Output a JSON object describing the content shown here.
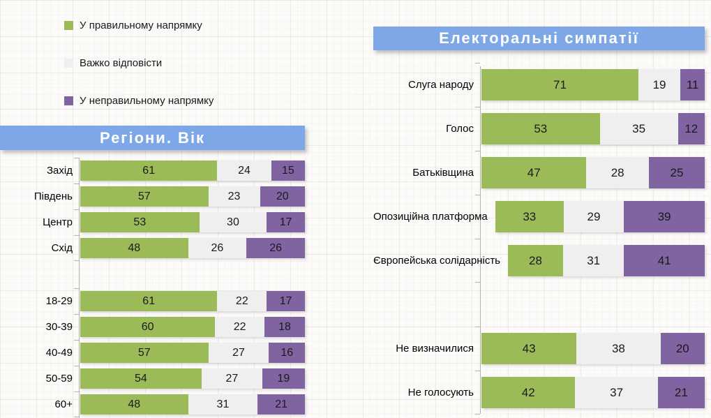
{
  "colors": {
    "positive": "#9bbb59",
    "neutral": "#efefef",
    "negative": "#8064a2",
    "banner_bg": "#7da7e6",
    "banner_text": "#ffffff",
    "value_text": "#1a1a1a",
    "axis": "#b3b3b3"
  },
  "legend": {
    "items": [
      {
        "key": "positive",
        "label": "У правильному напрямку",
        "color": "#9bbb59"
      },
      {
        "key": "neutral",
        "label": "Важко відповісти",
        "color": "#efefef"
      },
      {
        "key": "negative",
        "label": "У неправильному напрямку",
        "color": "#8064a2"
      }
    ]
  },
  "chart_data": [
    {
      "id": "regions-age",
      "type": "bar",
      "orientation": "horizontal",
      "stacked": true,
      "grid": false,
      "title": "Регіони. Вік",
      "xlim": [
        0,
        100
      ],
      "categories": [
        "Захід",
        "Південь",
        "Центр",
        "Схід",
        "18-29",
        "30-39",
        "40-49",
        "50-59",
        "60+"
      ],
      "section_break_after": "Схід",
      "series": [
        {
          "name": "У правильному напрямку",
          "values": [
            61,
            57,
            53,
            48,
            61,
            60,
            57,
            54,
            48
          ]
        },
        {
          "name": "Важко відповісти",
          "values": [
            24,
            23,
            30,
            26,
            22,
            22,
            27,
            27,
            31
          ]
        },
        {
          "name": "У неправильному напрямку",
          "values": [
            15,
            20,
            17,
            26,
            17,
            18,
            16,
            19,
            21
          ]
        }
      ]
    },
    {
      "id": "electoral-sympathies",
      "type": "bar",
      "orientation": "horizontal",
      "stacked": true,
      "grid": false,
      "title": "Електоральні симпатії",
      "xlim": [
        0,
        100
      ],
      "categories": [
        "Слуга народу",
        "Голос",
        "Батьківщина",
        "Опозиційна платформа",
        "Європейська солідарність",
        "Не визначилися",
        "Не голосують"
      ],
      "section_break_after": "Європейська солідарність",
      "series": [
        {
          "name": "У правильному напрямку",
          "values": [
            71,
            53,
            47,
            33,
            28,
            43,
            42
          ]
        },
        {
          "name": "Важко відповісти",
          "values": [
            19,
            35,
            28,
            29,
            31,
            38,
            37
          ]
        },
        {
          "name": "У неправильному напрямку",
          "values": [
            11,
            12,
            25,
            39,
            41,
            20,
            21
          ]
        }
      ]
    }
  ]
}
